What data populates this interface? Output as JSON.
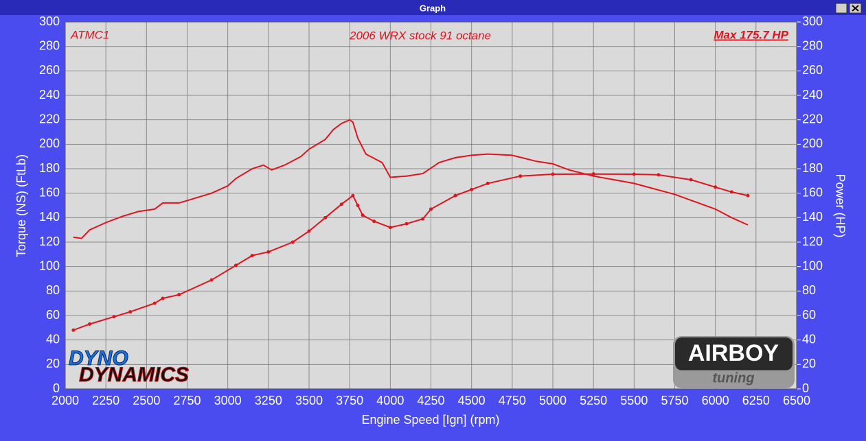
{
  "window": {
    "title": "Graph"
  },
  "chart_data": {
    "type": "line",
    "title": "2006 WRX stock 91 octane",
    "annotations": [
      "ATMC1",
      "Max 175.7 HP"
    ],
    "logos": [
      "DYNO",
      "DYNAMICS",
      "AIRBOY",
      "tuning"
    ],
    "xlabel": "Engine Speed [Ign] (rpm)",
    "ylabel": "Torque (NS) (FtLb)",
    "y2label": "Power (HP)",
    "xlim": [
      2000,
      6500
    ],
    "xticks": [
      2000,
      2250,
      2500,
      2750,
      3000,
      3250,
      3500,
      3750,
      4000,
      4250,
      4500,
      4750,
      5000,
      5250,
      5500,
      5750,
      6000,
      6250,
      6500
    ],
    "ylim": [
      0,
      300
    ],
    "yticks": [
      0,
      20,
      40,
      60,
      80,
      100,
      120,
      140,
      160,
      180,
      200,
      220,
      240,
      260,
      280,
      300
    ],
    "y2lim": [
      0,
      300
    ],
    "y2ticks": [
      0,
      20,
      40,
      60,
      80,
      100,
      120,
      140,
      160,
      180,
      200,
      220,
      240,
      260,
      280,
      300
    ],
    "grid": true,
    "series": [
      {
        "color": "#e0141e",
        "markers": false,
        "x": [
          2050,
          2100,
          2150,
          2250,
          2350,
          2450,
          2550,
          2600,
          2700,
          2750,
          2900,
          3000,
          3050,
          3150,
          3220,
          3270,
          3350,
          3450,
          3500,
          3600,
          3650,
          3700,
          3750,
          3770,
          3800,
          3850,
          3950,
          4000,
          4100,
          4200,
          4300,
          4400,
          4500,
          4600,
          4750,
          4900,
          5000,
          5100,
          5250,
          5500,
          5750,
          6000,
          6100,
          6200
        ],
        "values": [
          124,
          123,
          130,
          136,
          141,
          145,
          147,
          152,
          152,
          154,
          160,
          166,
          172,
          180,
          183,
          179,
          183,
          190,
          196,
          204,
          212,
          217,
          220,
          218,
          205,
          192,
          185,
          173,
          174,
          176,
          185,
          189,
          191,
          192,
          191,
          186,
          184,
          179,
          174,
          168,
          159,
          147,
          140,
          134
        ]
      },
      {
        "color": "#e0141e",
        "markers": true,
        "axis": "y2",
        "x": [
          2050,
          2150,
          2300,
          2400,
          2550,
          2600,
          2700,
          2900,
          3050,
          3150,
          3250,
          3400,
          3500,
          3600,
          3700,
          3770,
          3800,
          3830,
          3900,
          4000,
          4100,
          4200,
          4250,
          4400,
          4500,
          4600,
          4800,
          5000,
          5250,
          5500,
          5650,
          5850,
          6000,
          6100,
          6200
        ],
        "values": [
          48,
          53,
          59,
          63,
          70,
          74,
          77,
          89,
          101,
          109,
          112,
          120,
          129,
          140,
          151,
          158,
          150,
          142,
          137,
          132,
          135,
          139,
          147,
          158,
          163,
          168,
          174,
          175.5,
          175.7,
          175.5,
          175,
          171,
          165,
          161,
          158
        ]
      }
    ]
  }
}
